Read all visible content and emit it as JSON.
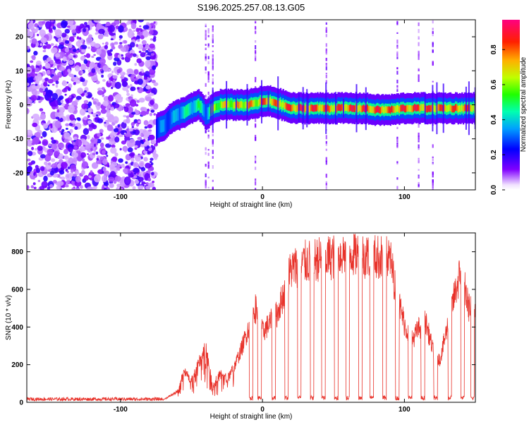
{
  "title": "S196.2025.257.08.13.G05",
  "chart_data": [
    {
      "type": "heatmap",
      "xlabel": "Height of straight line (km)",
      "ylabel": "Frequency (Hz)",
      "xlim": [
        -166,
        150
      ],
      "ylim": [
        -25,
        25
      ],
      "x_ticks": [
        -100,
        0,
        100
      ],
      "x_tick_labels": [
        "-100",
        "0",
        "100"
      ],
      "y_ticks": [
        -20,
        -10,
        0,
        10,
        20
      ],
      "y_tick_labels": [
        "-20",
        "-10",
        "0",
        "10",
        "20"
      ],
      "colorbar": {
        "label": "Normalized spectral amplitude",
        "range": [
          0,
          0.97
        ],
        "ticks": [
          0,
          0.2,
          0.4,
          0.6,
          0.8
        ],
        "tick_labels": [
          "0.0",
          "0.2",
          "0.4",
          "0.6",
          "0.8"
        ],
        "colormap": [
          "#ffffff",
          "#8000ff",
          "#0000ff",
          "#00c0ff",
          "#00ff60",
          "#c0ff00",
          "#ffa000",
          "#ff0000",
          "#ff0080"
        ]
      },
      "noise_region_x": [
        -166,
        -75
      ],
      "ridge": {
        "x": [
          -75,
          -70,
          -65,
          -60,
          -55,
          -50,
          -45,
          -40,
          -35,
          -30,
          -20,
          -10,
          -5,
          0,
          5,
          10,
          20,
          30,
          40,
          50,
          60,
          70,
          80,
          90,
          100,
          110,
          120,
          130,
          140,
          150
        ],
        "freq": [
          -7,
          -6,
          -4,
          -3,
          -2,
          -1,
          0,
          -3,
          -1,
          0,
          0,
          0,
          0.5,
          1,
          1,
          0.5,
          -1,
          -1,
          -1,
          -1,
          -1,
          -1,
          -1.5,
          -1.5,
          -1,
          -1,
          -1,
          -1,
          -1,
          -1
        ],
        "amp": [
          0.3,
          0.4,
          0.35,
          0.45,
          0.5,
          0.5,
          0.55,
          0.4,
          0.7,
          0.75,
          0.8,
          0.85,
          0.8,
          0.9,
          0.9,
          0.85,
          0.95,
          0.95,
          0.95,
          0.9,
          0.95,
          0.95,
          0.95,
          0.9,
          0.95,
          0.95,
          0.9,
          0.9,
          0.9,
          0.9
        ]
      }
    },
    {
      "type": "line",
      "xlabel": "Height of straight line (km)",
      "ylabel": "SNR (10 * v/v)",
      "xlim": [
        -166,
        150
      ],
      "ylim": [
        0,
        900
      ],
      "x_ticks": [
        -100,
        0,
        100
      ],
      "x_tick_labels": [
        "-100",
        "0",
        "100"
      ],
      "y_ticks": [
        0,
        200,
        400,
        600,
        800
      ],
      "y_tick_labels": [
        "0",
        "200",
        "400",
        "600",
        "800"
      ],
      "color": "#e8322a",
      "envelope": {
        "x": [
          -166,
          -70,
          -60,
          -55,
          -50,
          -45,
          -40,
          -35,
          -30,
          -25,
          -20,
          -15,
          -10,
          -5,
          0,
          5,
          10,
          15,
          20,
          30,
          40,
          50,
          60,
          70,
          80,
          90,
          95,
          100,
          105,
          110,
          115,
          120,
          125,
          130,
          135,
          140,
          145,
          150
        ],
        "snr": [
          12,
          14,
          60,
          180,
          120,
          220,
          320,
          90,
          160,
          130,
          200,
          300,
          420,
          540,
          400,
          450,
          500,
          620,
          760,
          800,
          820,
          830,
          860,
          840,
          830,
          820,
          600,
          450,
          350,
          420,
          460,
          300,
          240,
          420,
          600,
          760,
          550,
          500
        ]
      },
      "dropouts_x": [
        -8,
        -2,
        8,
        17,
        26,
        35,
        43,
        52,
        60,
        69,
        77,
        86,
        95,
        104,
        113,
        122,
        132,
        141,
        148
      ]
    }
  ]
}
